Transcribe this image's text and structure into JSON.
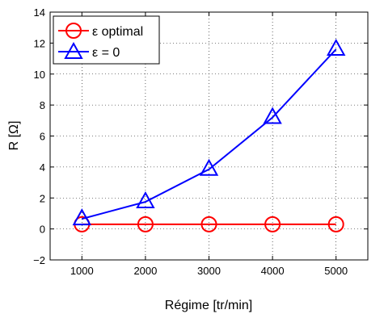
{
  "chart_data": {
    "type": "line",
    "title": "",
    "xlabel": "Régime [tr/min]",
    "ylabel": "R [Ω]",
    "x": [
      1000,
      2000,
      3000,
      4000,
      5000
    ],
    "xlim": [
      500,
      5500
    ],
    "ylim": [
      -2,
      14
    ],
    "xticks": [
      1000,
      2000,
      3000,
      4000,
      5000
    ],
    "yticks": [
      -2,
      0,
      2,
      4,
      6,
      8,
      10,
      12,
      14
    ],
    "grid": true,
    "legend_position": "top-left",
    "series": [
      {
        "name": "ε optimal",
        "values": [
          0.3,
          0.3,
          0.3,
          0.3,
          0.3
        ],
        "color": "#ff0000",
        "marker": "circle"
      },
      {
        "name": "ε = 0",
        "values": [
          0.65,
          1.75,
          3.85,
          7.2,
          11.6
        ],
        "color": "#0000ff",
        "marker": "triangle"
      }
    ]
  }
}
